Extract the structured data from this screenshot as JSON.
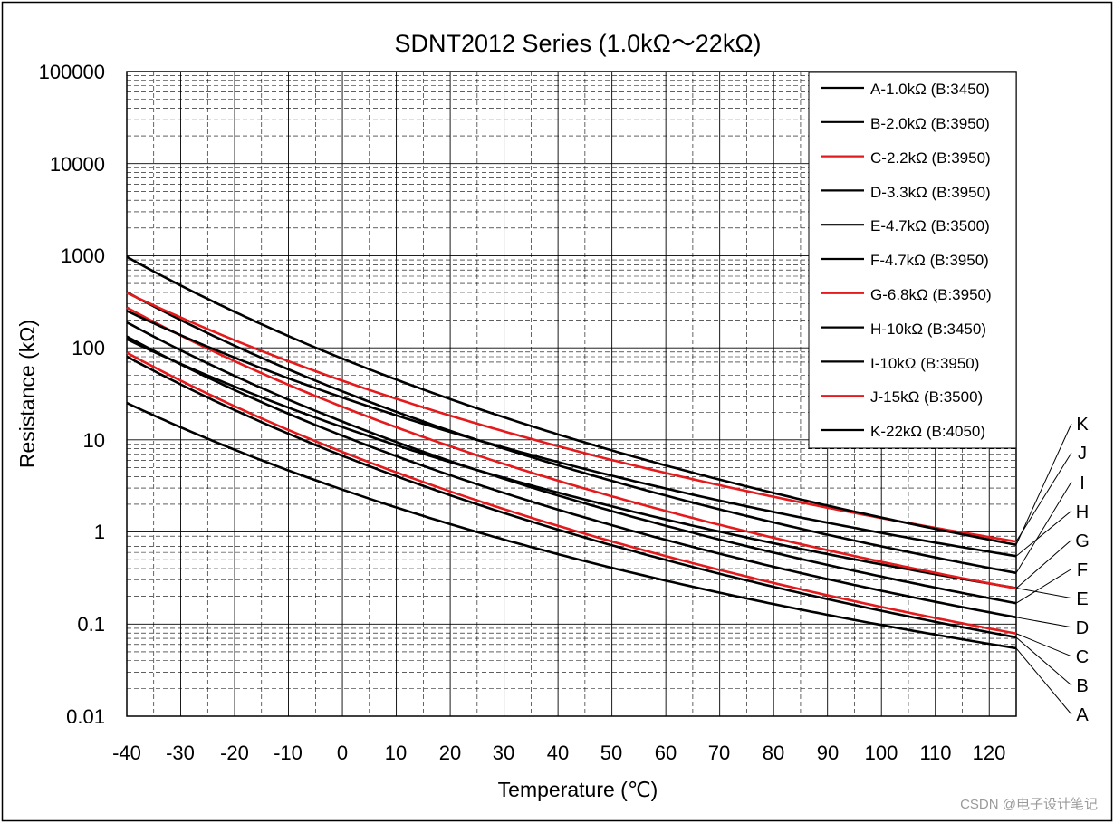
{
  "chart_data": {
    "type": "line",
    "title": "SDNT2012 Series (1.0kΩ～22kΩ)",
    "xlabel": "Temperature (℃)",
    "ylabel": "Resistance (kΩ)",
    "x_ticks": [
      "-40",
      "-30",
      "-20",
      "-10",
      "0",
      "10",
      "20",
      "30",
      "40",
      "50",
      "60",
      "70",
      "80",
      "90",
      "100",
      "110",
      "120"
    ],
    "y_ticks": [
      "100000",
      "10000",
      "1000",
      "100",
      "10",
      "1",
      "0.1",
      "0.01"
    ],
    "xlim": [
      -40,
      125
    ],
    "ylim": [
      0.01,
      100000
    ],
    "y_scale": "log",
    "grid": true,
    "legend_position": "top-right",
    "colors": {
      "black": "#000000",
      "red": "#e41a1c"
    },
    "series": [
      {
        "id": "A",
        "name": "A-1.0kΩ (B:3450)",
        "ref_kohm": 1.0,
        "B": 3450,
        "color": "black"
      },
      {
        "id": "B",
        "name": "B-2.0kΩ (B:3950)",
        "ref_kohm": 2.0,
        "B": 3950,
        "color": "black"
      },
      {
        "id": "C",
        "name": "C-2.2kΩ (B:3950)",
        "ref_kohm": 2.2,
        "B": 3950,
        "color": "red"
      },
      {
        "id": "D",
        "name": "D-3.3kΩ (B:3950)",
        "ref_kohm": 3.3,
        "B": 3950,
        "color": "black"
      },
      {
        "id": "E",
        "name": "E-4.7kΩ (B:3500)",
        "ref_kohm": 4.7,
        "B": 3500,
        "color": "black"
      },
      {
        "id": "F",
        "name": "F-4.7kΩ (B:3950)",
        "ref_kohm": 4.7,
        "B": 3950,
        "color": "black"
      },
      {
        "id": "G",
        "name": "G-6.8kΩ (B:3950)",
        "ref_kohm": 6.8,
        "B": 3950,
        "color": "red"
      },
      {
        "id": "H",
        "name": "H-10kΩ (B:3450)",
        "ref_kohm": 10,
        "B": 3450,
        "color": "black"
      },
      {
        "id": "I",
        "name": "I-10kΩ (B:3950)",
        "ref_kohm": 10,
        "B": 3950,
        "color": "black"
      },
      {
        "id": "J",
        "name": "J-15kΩ (B:3500)",
        "ref_kohm": 15,
        "B": 3500,
        "color": "red"
      },
      {
        "id": "K",
        "name": "K-22kΩ (B:4050)",
        "ref_kohm": 22,
        "B": 4050,
        "color": "black"
      }
    ],
    "curve_labels": [
      "K",
      "J",
      "I",
      "H",
      "G",
      "F",
      "E",
      "D",
      "C",
      "B",
      "A"
    ]
  },
  "watermark": "CSDN @电子设计笔记"
}
